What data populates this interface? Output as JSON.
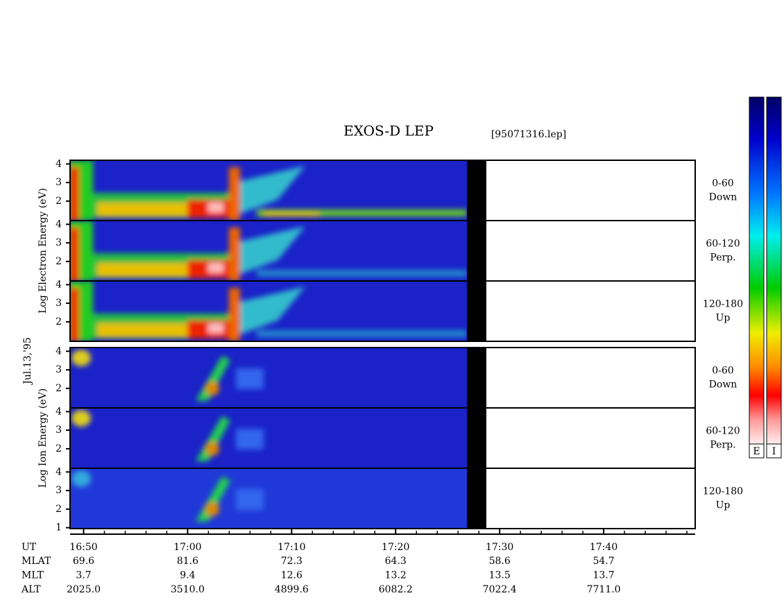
{
  "chart_data": {
    "type": "spectrogram",
    "title": "EXOS-D LEP",
    "subtitle": "[95071316.lep]",
    "date": "Jul.13,'95",
    "xlim": [
      48.7,
      108.8
    ],
    "ylim": [
      0.95,
      4.2
    ],
    "xticks": [
      {
        "value": 50,
        "label": "16:50"
      },
      {
        "value": 60,
        "label": "17:00"
      },
      {
        "value": 70,
        "label": "17:10"
      },
      {
        "value": 80,
        "label": "17:20"
      },
      {
        "value": 90,
        "label": "17:30"
      },
      {
        "value": 100,
        "label": "17:40"
      }
    ],
    "xminorticks": [
      52,
      54,
      56,
      58,
      62,
      64,
      66,
      68,
      72,
      74,
      76,
      78,
      82,
      84,
      86,
      88,
      92,
      94,
      96,
      98,
      102,
      104,
      106,
      108
    ],
    "groups": [
      {
        "ylabel": "Log Electron Energy (eV)",
        "panels": [
          {
            "angle": "0-60",
            "direction": "Down",
            "yticks": [
              2,
              3,
              4
            ]
          },
          {
            "angle": "60-120",
            "direction": "Perp.",
            "yticks": [
              2,
              3,
              4
            ]
          },
          {
            "angle": "120-180",
            "direction": "Up",
            "yticks": [
              2,
              3,
              4
            ]
          }
        ]
      },
      {
        "ylabel": "Log Ion Energy (eV)",
        "panels": [
          {
            "angle": "0-60",
            "direction": "Down",
            "yticks": [
              2,
              3,
              4
            ]
          },
          {
            "angle": "60-120",
            "direction": "Perp.",
            "yticks": [
              2,
              3,
              4
            ]
          },
          {
            "angle": "120-180",
            "direction": "Up",
            "yticks": [
              1,
              2,
              3,
              4
            ]
          }
        ]
      }
    ],
    "orbit": {
      "label": "UT",
      "rows": [
        {
          "name": "MLAT",
          "values": [
            "69.6",
            "81.6",
            "72.3",
            "64.3",
            "58.6",
            "54.7"
          ]
        },
        {
          "name": "MLT",
          "values": [
            "3.7",
            "9.4",
            "12.6",
            "13.2",
            "13.5",
            "13.7"
          ]
        },
        {
          "name": "ALT",
          "values": [
            "2025.0",
            "3510.0",
            "4899.6",
            "6082.2",
            "7022.4",
            "7711.0"
          ]
        }
      ]
    },
    "colorbars": [
      "E",
      "I"
    ]
  }
}
